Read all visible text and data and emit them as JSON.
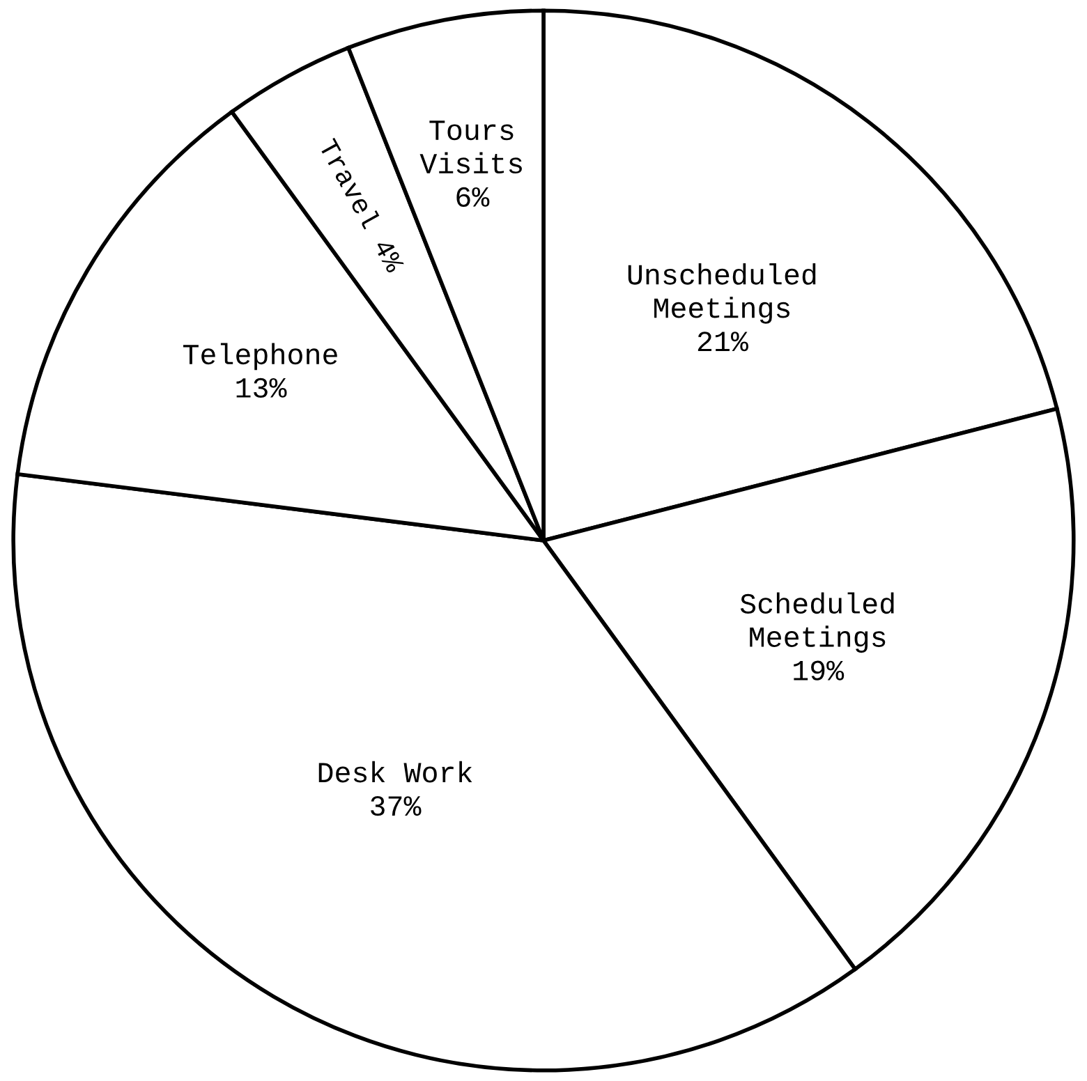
{
  "chart_data": {
    "type": "pie",
    "categories": [
      "Unscheduled\nMeetings",
      "Scheduled\nMeetings",
      "Desk Work",
      "Telephone",
      "Travel",
      "Tours\nVisits"
    ],
    "values": [
      21,
      19,
      37,
      13,
      4,
      6
    ],
    "value_labels": [
      "21%",
      "19%",
      "37%",
      "13%",
      "4%",
      "6%"
    ],
    "colors": [
      "#ffffff",
      "#ffffff",
      "#ffffff",
      "#ffffff",
      "#ffffff",
      "#ffffff"
    ]
  }
}
